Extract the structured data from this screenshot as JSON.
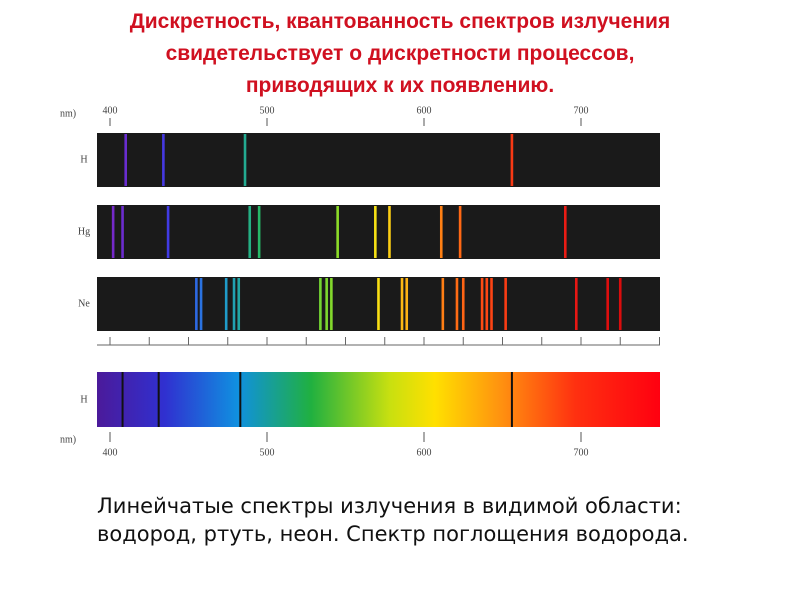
{
  "title": [
    "Дискретность, квантованность спектров излучения",
    "свидетельствует о дискретности процессов,",
    "приводящих к их появлению."
  ],
  "axis": {
    "unit_label": "nm)",
    "ticks": [
      400,
      500,
      600,
      700
    ],
    "range": [
      400,
      760
    ]
  },
  "emission": [
    {
      "label": "H",
      "lines": [
        410,
        434,
        486,
        656
      ]
    },
    {
      "label": "Hg",
      "lines": [
        402,
        408,
        437,
        489,
        495,
        545,
        569,
        578,
        611,
        623,
        690
      ]
    },
    {
      "label": "Ne",
      "lines": [
        455,
        458,
        474,
        479,
        482,
        534,
        538,
        541,
        571,
        586,
        589,
        612,
        621,
        625,
        637,
        640,
        643,
        652,
        697,
        717,
        725
      ]
    }
  ],
  "absorption": {
    "label": "H",
    "lines": [
      408,
      431,
      483,
      656
    ]
  },
  "caption": [
    "Линейчатые спектры излучения в видимой области:",
    "водород, ртуть, неон. Спектр поглощения водорода."
  ]
}
